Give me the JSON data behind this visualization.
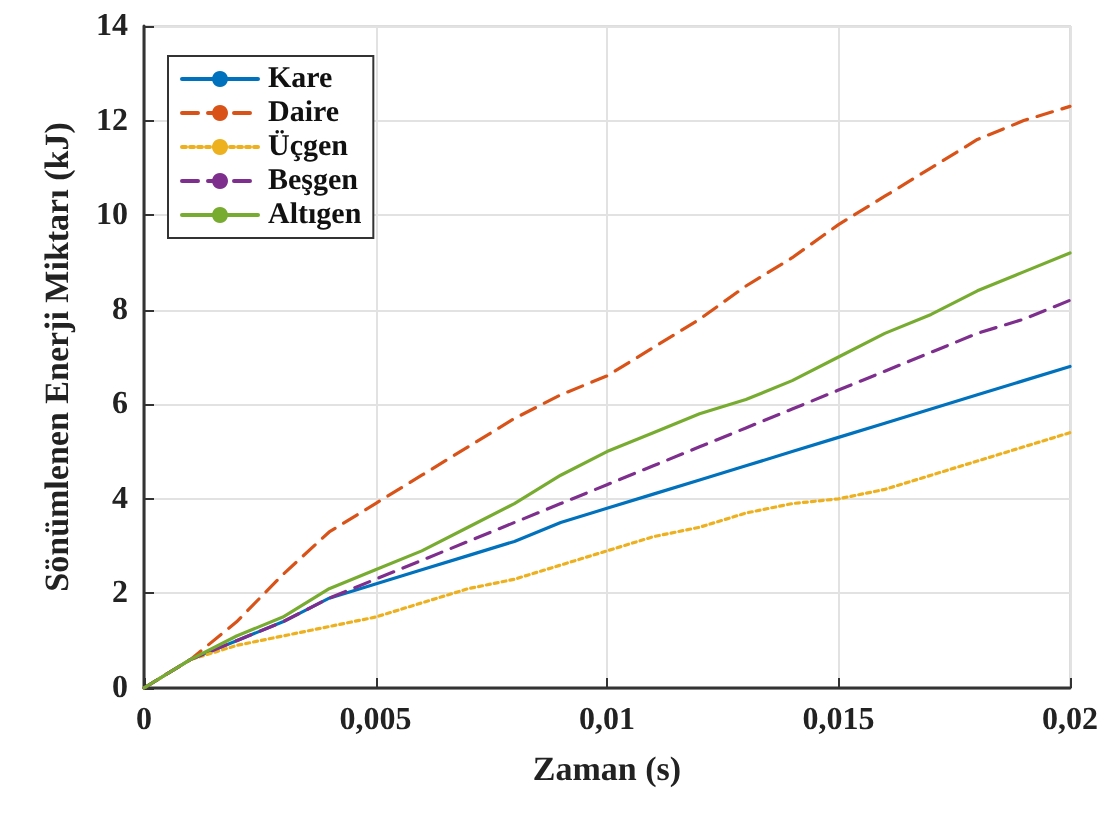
{
  "chart_data": {
    "type": "line",
    "xlabel": "Zaman (s)",
    "ylabel": "Sönümlenen Enerji Miktarı (kJ)",
    "x": [
      0,
      0.001,
      0.002,
      0.003,
      0.004,
      0.005,
      0.006,
      0.007,
      0.008,
      0.009,
      0.01,
      0.011,
      0.012,
      0.013,
      0.014,
      0.015,
      0.016,
      0.017,
      0.018,
      0.019,
      0.02
    ],
    "series": [
      {
        "name": "Kare",
        "color": "#0072bd",
        "line_style": "solid",
        "values": [
          0,
          0.6,
          1.0,
          1.4,
          1.9,
          2.2,
          2.5,
          2.8,
          3.1,
          3.5,
          3.8,
          4.1,
          4.4,
          4.7,
          5.0,
          5.3,
          5.6,
          5.9,
          6.2,
          6.5,
          6.8
        ]
      },
      {
        "name": "Daire",
        "color": "#d95319",
        "line_style": "dashed",
        "values": [
          0,
          0.6,
          1.4,
          2.4,
          3.3,
          3.9,
          4.5,
          5.1,
          5.7,
          6.2,
          6.6,
          7.2,
          7.8,
          8.5,
          9.1,
          9.8,
          10.4,
          11.0,
          11.6,
          12.0,
          12.3
        ]
      },
      {
        "name": "Üçgen",
        "color": "#edb120",
        "line_style": "dotted",
        "values": [
          0,
          0.6,
          0.9,
          1.1,
          1.3,
          1.5,
          1.8,
          2.1,
          2.3,
          2.6,
          2.9,
          3.2,
          3.4,
          3.7,
          3.9,
          4.0,
          4.2,
          4.5,
          4.8,
          5.1,
          5.4
        ]
      },
      {
        "name": "Beşgen",
        "color": "#7e2f8e",
        "line_style": "dashed",
        "values": [
          0,
          0.6,
          1.0,
          1.4,
          1.9,
          2.3,
          2.7,
          3.1,
          3.5,
          3.9,
          4.3,
          4.7,
          5.1,
          5.5,
          5.9,
          6.3,
          6.7,
          7.1,
          7.5,
          7.8,
          8.2
        ]
      },
      {
        "name": "Altıgen",
        "color": "#77ac30",
        "line_style": "solid",
        "values": [
          0,
          0.6,
          1.1,
          1.5,
          2.1,
          2.5,
          2.9,
          3.4,
          3.9,
          4.5,
          5.0,
          5.4,
          5.8,
          6.1,
          6.5,
          7.0,
          7.5,
          7.9,
          8.4,
          8.8,
          9.2
        ]
      }
    ],
    "xlim": [
      0,
      0.02
    ],
    "xticks": [
      0,
      {
        "value": 0.005,
        "label": "0,005"
      },
      {
        "value": 0.01,
        "label": "0,01"
      },
      {
        "value": 0.015,
        "label": "0,015"
      },
      {
        "value": 0.02,
        "label": "0,02"
      }
    ],
    "ylim": [
      0,
      14
    ],
    "yticks": [
      0,
      2,
      4,
      6,
      8,
      10,
      12,
      14
    ],
    "grid": true,
    "legend": "top left",
    "marker": "none"
  }
}
